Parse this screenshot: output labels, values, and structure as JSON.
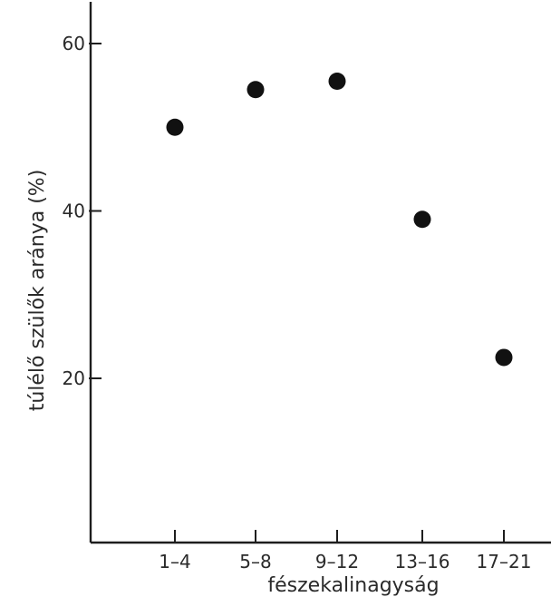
{
  "chart_data": {
    "type": "scatter",
    "title": "",
    "xlabel": "fészekalinagyság",
    "ylabel": "túlélő szülők aránya (%)",
    "categories": [
      "1–4",
      "5–8",
      "9–12",
      "13–16",
      "17–21"
    ],
    "values": [
      50,
      54.5,
      55.5,
      39,
      22.5
    ],
    "ylim": [
      0,
      65
    ],
    "yticks": [
      20,
      40,
      60
    ],
    "grid": false,
    "legend": "none",
    "colors": {
      "axis": "#1e1e1e",
      "marker": "#111111",
      "text": "#2a2a2a",
      "background": "#ffffff"
    }
  }
}
